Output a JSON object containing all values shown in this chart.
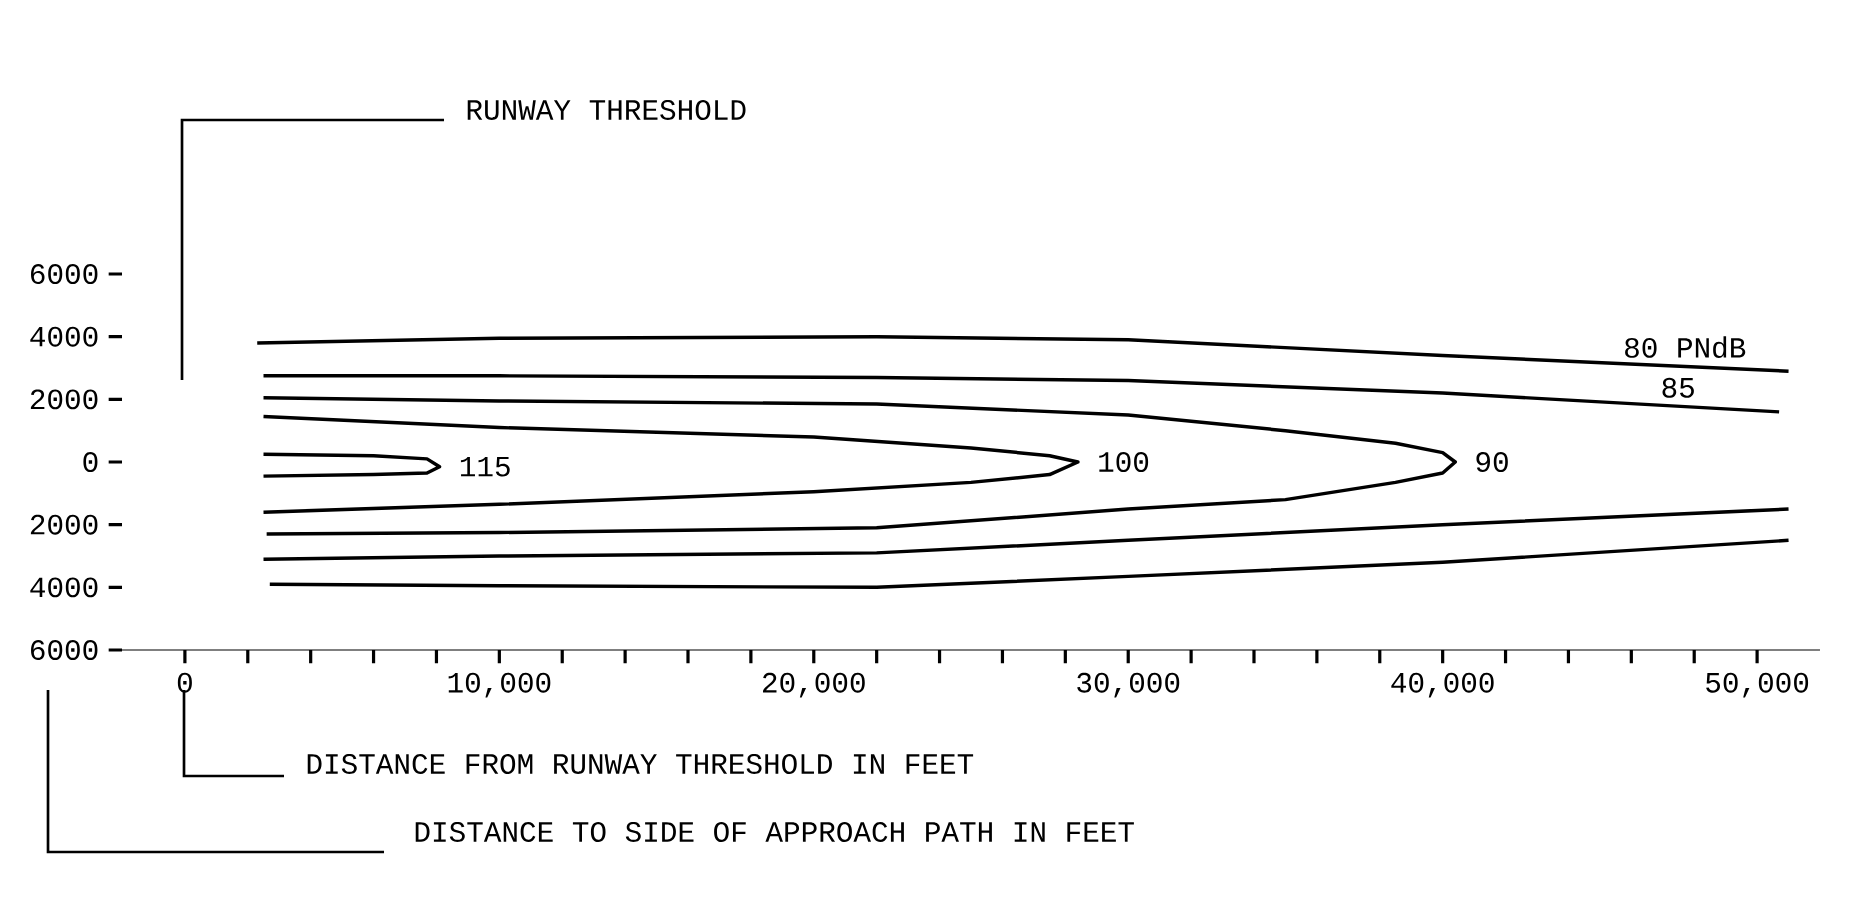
{
  "chart_data": {
    "type": "line",
    "xlabel": "DISTANCE FROM RUNWAY THRESHOLD IN FEET",
    "annotations": [
      "RUNWAY THRESHOLD",
      "DISTANCE TO SIDE OF APPROACH PATH IN FEET"
    ],
    "xlim": [
      -2000,
      52000
    ],
    "ylim": [
      -6000,
      6000
    ],
    "xticks": [
      {
        "value": 0,
        "label": "0"
      },
      {
        "value": 2000,
        "label": null
      },
      {
        "value": 4000,
        "label": null
      },
      {
        "value": 6000,
        "label": null
      },
      {
        "value": 8000,
        "label": null
      },
      {
        "value": 10000,
        "label": "10,000"
      },
      {
        "value": 12000,
        "label": null
      },
      {
        "value": 14000,
        "label": null
      },
      {
        "value": 16000,
        "label": null
      },
      {
        "value": 18000,
        "label": null
      },
      {
        "value": 20000,
        "label": "20,000"
      },
      {
        "value": 22000,
        "label": null
      },
      {
        "value": 24000,
        "label": null
      },
      {
        "value": 26000,
        "label": null
      },
      {
        "value": 28000,
        "label": null
      },
      {
        "value": 30000,
        "label": "30,000"
      },
      {
        "value": 32000,
        "label": null
      },
      {
        "value": 34000,
        "label": null
      },
      {
        "value": 36000,
        "label": null
      },
      {
        "value": 38000,
        "label": null
      },
      {
        "value": 40000,
        "label": "40,000"
      },
      {
        "value": 42000,
        "label": null
      },
      {
        "value": 44000,
        "label": null
      },
      {
        "value": 46000,
        "label": null
      },
      {
        "value": 48000,
        "label": null
      },
      {
        "value": 50000,
        "label": "50,000"
      }
    ],
    "yticks": [
      6000,
      4000,
      2000,
      0,
      {
        "value": -2000,
        "label": "2000"
      },
      {
        "value": -4000,
        "label": "4000"
      },
      {
        "value": -6000,
        "label": "6000"
      }
    ],
    "grid": false,
    "legend": false,
    "series": [
      {
        "name": "80 PNdB",
        "color": "#000000",
        "x": [
          2300,
          10000,
          22000,
          30000,
          40000,
          51000,
          null,
          2700,
          10000,
          22000,
          30000,
          40000,
          51000
        ],
        "values": [
          3800,
          3950,
          4000,
          3900,
          3400,
          2900,
          null,
          -3900,
          -3950,
          -4000,
          -3650,
          -3200,
          -2500
        ]
      },
      {
        "name": "85",
        "color": "#000000",
        "x": [
          2500,
          10000,
          22000,
          30000,
          40000,
          50700,
          null,
          2500,
          10000,
          22000,
          30000,
          40000,
          51000
        ],
        "values": [
          2750,
          2750,
          2700,
          2600,
          2200,
          1600,
          null,
          -3100,
          -3000,
          -2900,
          -2500,
          -2000,
          -1500
        ]
      },
      {
        "name": "90",
        "color": "#000000",
        "x": [
          2500,
          10000,
          22000,
          30000,
          35000,
          38500,
          40000,
          40400,
          40000,
          38500,
          35000,
          30000,
          22000,
          10000,
          2600
        ],
        "values": [
          2050,
          1950,
          1850,
          1500,
          1000,
          600,
          300,
          0,
          -350,
          -650,
          -1200,
          -1500,
          -2100,
          -2250,
          -2300
        ]
      },
      {
        "name": "100",
        "color": "#000000",
        "x": [
          2500,
          10000,
          20000,
          25000,
          27500,
          28400,
          27500,
          25000,
          20000,
          10000,
          2500
        ],
        "values": [
          1450,
          1100,
          800,
          450,
          200,
          0,
          -400,
          -650,
          -950,
          -1350,
          -1600
        ]
      },
      {
        "name": "115",
        "color": "#000000",
        "x": [
          2500,
          6000,
          7700,
          8100,
          7700,
          6000,
          2500
        ],
        "values": [
          250,
          200,
          100,
          -150,
          -350,
          -400,
          -450
        ]
      }
    ]
  }
}
